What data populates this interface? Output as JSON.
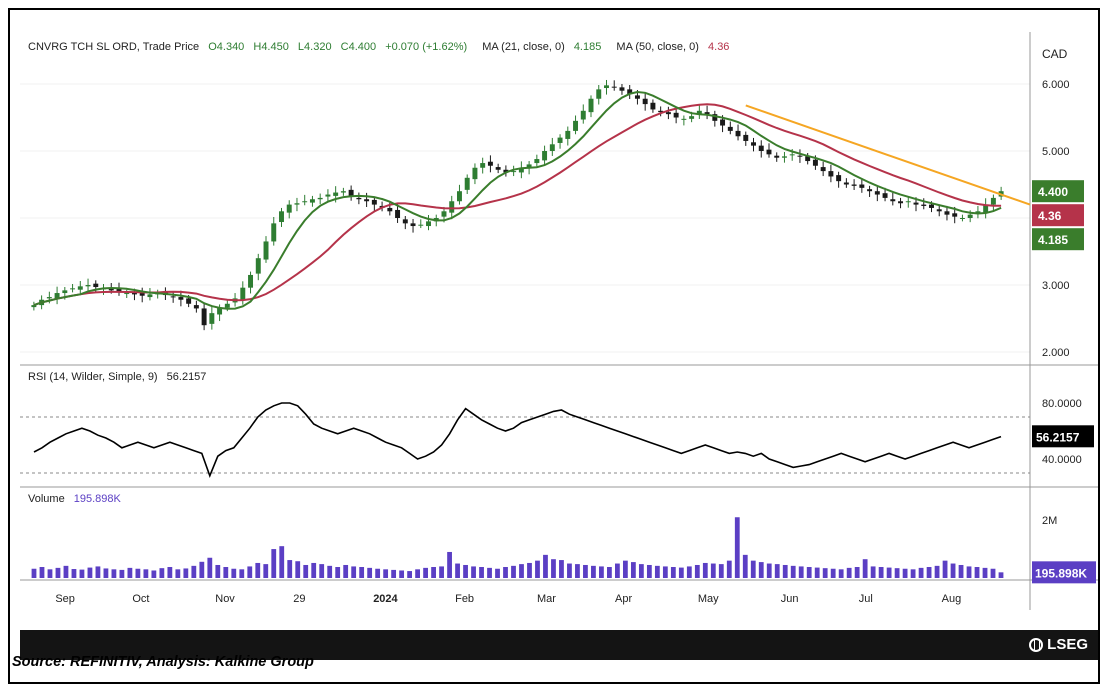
{
  "header": {
    "symbol": "CNVRG TCH SL ORD, Trade Price",
    "open": "O4.340",
    "high": "H4.450",
    "low": "L4.320",
    "close": "C4.400",
    "change": "+0.070 (+1.62%)",
    "ma21_label": "MA (21, close, 0)",
    "ma21_value": "4.185",
    "ma50_label": "MA (50, close, 0)",
    "ma50_value": "4.36"
  },
  "currency": "CAD",
  "rsi_legend": {
    "label": "RSI (14, Wilder, Simple, 9)",
    "value": "56.2157"
  },
  "volume_legend": {
    "label": "Volume",
    "value": "195.898K"
  },
  "footer": {
    "brand": "LSEG",
    "source": "Source: REFINITIV, Analysis: Kalkine Group"
  },
  "colors": {
    "candle_up": "#2e7d32",
    "candle_down": "#1a1a1a",
    "ma21": "#3a7d2c",
    "ma50": "#b5334a",
    "trendline": "#f5a623",
    "rsi": "#000000",
    "volume": "#5b3fc4",
    "footer": "#141414"
  },
  "chart_data": [
    {
      "type": "candlestick",
      "title": "CNVRG TCH SL ORD, Trade Price",
      "unit": "CAD",
      "x_ticks": [
        "Sep",
        "Oct",
        "Nov",
        "29",
        "2024",
        "Feb",
        "Mar",
        "Apr",
        "May",
        "Jun",
        "Jul",
        "Aug"
      ],
      "y_ticks": [
        "6.000",
        "5.000",
        "4.000",
        "3.000",
        "2.000"
      ],
      "ylim": [
        2.0,
        6.0
      ],
      "last": {
        "open": 4.34,
        "high": 4.45,
        "low": 4.32,
        "close": 4.4
      },
      "series": [
        {
          "name": "MA (21, close, 0)",
          "last": 4.185
        },
        {
          "name": "MA (50, close, 0)",
          "last": 4.36
        }
      ],
      "price_labels": [
        "4.400",
        "4.36",
        "4.185"
      ],
      "close_series": [
        2.7,
        2.78,
        2.82,
        2.88,
        2.92,
        2.95,
        2.98,
        3.0,
        2.97,
        2.95,
        2.92,
        2.9,
        2.88,
        2.86,
        2.84,
        2.86,
        2.88,
        2.85,
        2.82,
        2.78,
        2.72,
        2.65,
        2.4,
        2.58,
        2.66,
        2.72,
        2.8,
        2.96,
        3.15,
        3.4,
        3.65,
        3.92,
        4.1,
        4.2,
        4.22,
        4.25,
        4.28,
        4.3,
        4.35,
        4.38,
        4.4,
        4.32,
        4.28,
        4.25,
        4.2,
        4.15,
        4.1,
        4.0,
        3.92,
        3.88,
        3.9,
        3.95,
        4.0,
        4.1,
        4.25,
        4.4,
        4.6,
        4.75,
        4.82,
        4.78,
        4.72,
        4.68,
        4.7,
        4.75,
        4.8,
        4.88,
        5.0,
        5.1,
        5.2,
        5.3,
        5.45,
        5.6,
        5.78,
        5.92,
        5.98,
        5.95,
        5.9,
        5.85,
        5.78,
        5.7,
        5.62,
        5.58,
        5.55,
        5.5,
        5.48,
        5.52,
        5.6,
        5.55,
        5.45,
        5.38,
        5.3,
        5.22,
        5.15,
        5.08,
        5.0,
        4.95,
        4.9,
        4.92,
        4.95,
        4.92,
        4.85,
        4.78,
        4.7,
        4.62,
        4.55,
        4.5,
        4.48,
        4.45,
        4.4,
        4.35,
        4.3,
        4.25,
        4.22,
        4.25,
        4.2,
        4.18,
        4.15,
        4.1,
        4.05,
        4.02,
        4.0,
        4.05,
        4.1,
        4.2,
        4.3,
        4.4
      ],
      "trendline": {
        "from": 5.68,
        "to": 4.2
      }
    },
    {
      "type": "line",
      "title": "RSI (14, Wilder, Simple, 9)",
      "y_ticks": [
        "80.0000",
        "40.0000"
      ],
      "ylim": [
        25,
        95
      ],
      "guides": [
        70,
        30
      ],
      "last": 56.2157,
      "values": [
        45,
        48,
        52,
        55,
        58,
        60,
        62,
        60,
        57,
        55,
        52,
        48,
        50,
        52,
        50,
        48,
        50,
        52,
        50,
        48,
        46,
        44,
        28,
        42,
        46,
        48,
        55,
        62,
        70,
        75,
        78,
        80,
        80,
        78,
        72,
        65,
        62,
        60,
        58,
        60,
        62,
        60,
        58,
        55,
        52,
        50,
        48,
        44,
        40,
        42,
        45,
        50,
        58,
        68,
        76,
        72,
        68,
        65,
        62,
        60,
        62,
        66,
        68,
        70,
        72,
        74,
        75,
        72,
        70,
        68,
        66,
        64,
        62,
        60,
        58,
        56,
        54,
        52,
        50,
        48,
        46,
        44,
        46,
        48,
        50,
        48,
        46,
        44,
        45,
        44,
        42,
        44,
        40,
        38,
        36,
        34,
        35,
        36,
        38,
        40,
        42,
        44,
        42,
        40,
        38,
        40,
        42,
        44,
        42,
        40,
        42,
        44,
        46,
        48,
        50,
        52,
        50,
        48,
        50,
        52,
        54,
        56
      ]
    },
    {
      "type": "bar",
      "title": "Volume",
      "y_ticks": [
        "2M"
      ],
      "ylim": [
        0,
        2800000
      ],
      "last": 195898,
      "values": [
        320000,
        380000,
        300000,
        350000,
        420000,
        310000,
        290000,
        360000,
        400000,
        330000,
        300000,
        280000,
        350000,
        320000,
        300000,
        260000,
        340000,
        380000,
        300000,
        330000,
        420000,
        560000,
        700000,
        450000,
        380000,
        320000,
        300000,
        400000,
        520000,
        480000,
        1000000,
        1100000,
        620000,
        580000,
        450000,
        520000,
        480000,
        420000,
        380000,
        450000,
        400000,
        380000,
        350000,
        320000,
        300000,
        280000,
        260000,
        240000,
        300000,
        350000,
        380000,
        400000,
        900000,
        500000,
        450000,
        400000,
        380000,
        350000,
        320000,
        380000,
        420000,
        480000,
        520000,
        600000,
        800000,
        650000,
        620000,
        500000,
        480000,
        450000,
        420000,
        400000,
        380000,
        500000,
        600000,
        550000,
        480000,
        450000,
        420000,
        400000,
        380000,
        360000,
        400000,
        450000,
        520000,
        500000,
        480000,
        600000,
        2100000,
        800000,
        600000,
        550000,
        500000,
        480000,
        450000,
        420000,
        400000,
        380000,
        360000,
        340000,
        320000,
        300000,
        350000,
        380000,
        650000,
        400000,
        380000,
        360000,
        340000,
        320000,
        300000,
        350000,
        380000,
        420000,
        600000,
        500000,
        450000,
        400000,
        380000,
        350000,
        320000,
        196000
      ]
    }
  ]
}
